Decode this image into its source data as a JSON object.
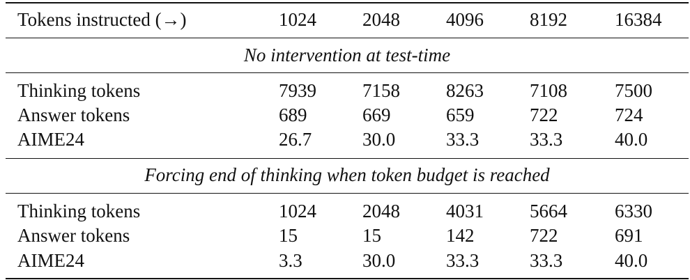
{
  "table": {
    "header": {
      "label": "Tokens instructed (→)",
      "values": [
        "1024",
        "2048",
        "4096",
        "8192",
        "16384"
      ]
    },
    "sections": [
      {
        "title": "No intervention at test-time",
        "rows": [
          {
            "label": "Thinking tokens",
            "values": [
              "7939",
              "7158",
              "8263",
              "7108",
              "7500"
            ]
          },
          {
            "label": "Answer tokens",
            "values": [
              "689",
              "669",
              "659",
              "722",
              "724"
            ]
          },
          {
            "label": "AIME24",
            "values": [
              "26.7",
              "30.0",
              "33.3",
              "33.3",
              "40.0"
            ]
          }
        ]
      },
      {
        "title": "Forcing end of thinking when token budget is reached",
        "rows": [
          {
            "label": "Thinking tokens",
            "values": [
              "1024",
              "2048",
              "4031",
              "5664",
              "6330"
            ]
          },
          {
            "label": "Answer tokens",
            "values": [
              "15",
              "15",
              "142",
              "722",
              "691"
            ]
          },
          {
            "label": "AIME24",
            "values": [
              "3.3",
              "30.0",
              "33.3",
              "33.3",
              "40.0"
            ]
          }
        ]
      }
    ]
  }
}
